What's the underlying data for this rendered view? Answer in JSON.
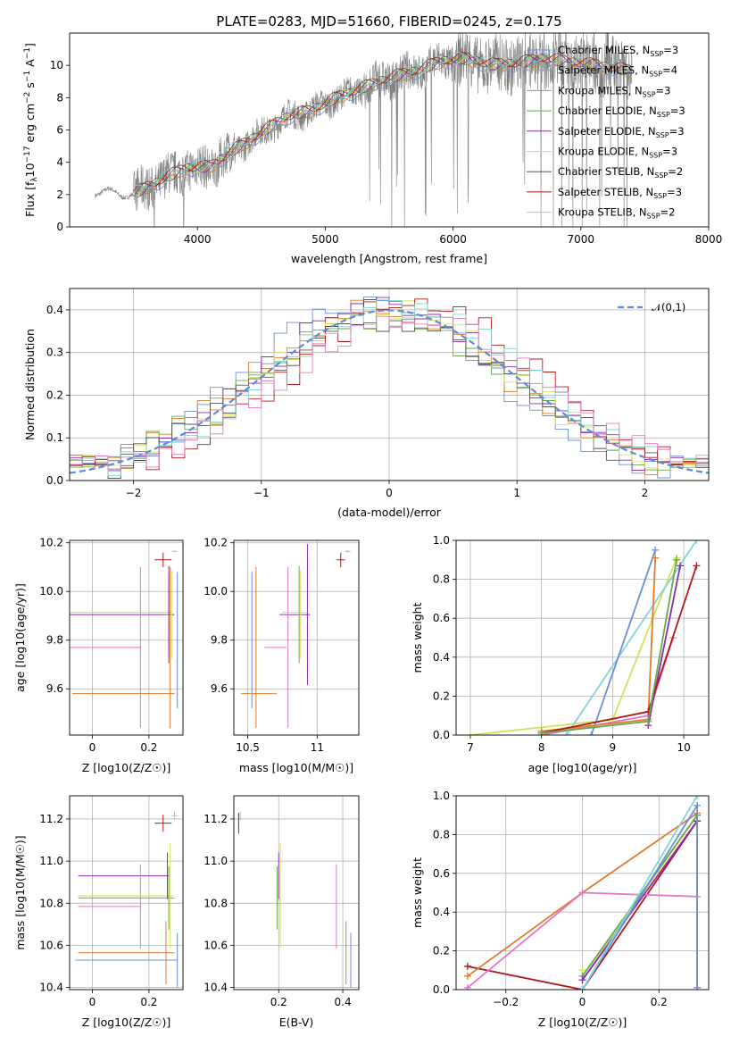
{
  "title": "PLATE=0283, MJD=51660, FIBERID=0245, z=0.175",
  "colors": {
    "chabrier_miles": "#6a8fd8",
    "salpeter_miles": "#9a9a9a",
    "kroupa_miles": "#e07b2e",
    "chabrier_elodie": "#69a84f",
    "salpeter_elodie": "#8a2bb0",
    "kroupa_elodie": "#d4e157",
    "chabrier_stelib": "#555555",
    "salpeter_stelib": "#b01818",
    "kroupa_stelib": "#7fd6d6",
    "pink": "#e377c2",
    "gauss": "#5b8bd9"
  },
  "chart_data": [
    {
      "id": "spectrum",
      "type": "line",
      "xlabel": "wavelength [Angstrom, rest frame]",
      "ylabel": "Flux [f_λ10^-17 erg cm^-2 s^-1 A^-1]",
      "xlim": [
        3000,
        8000
      ],
      "ylim": [
        0,
        12
      ],
      "xticks": [
        4000,
        5000,
        6000,
        7000,
        8000
      ],
      "yticks": [
        0,
        2,
        4,
        6,
        8,
        10
      ],
      "legend_position": "upper right",
      "legend": [
        {
          "text": "Chabrier MILES, N",
          "sub": "SSP",
          "n": "=3",
          "color": "chabrier_miles"
        },
        {
          "text": "Salpeter MILES, N",
          "sub": "SSP",
          "n": "=4",
          "color": "salpeter_miles"
        },
        {
          "text": "Kroupa MILES, N",
          "sub": "SSP",
          "n": "=3",
          "color": "kroupa_miles"
        },
        {
          "text": "Chabrier ELODIE, N",
          "sub": "SSP",
          "n": "=3",
          "color": "chabrier_elodie"
        },
        {
          "text": "Salpeter ELODIE, N",
          "sub": "SSP",
          "n": "=3",
          "color": "salpeter_elodie"
        },
        {
          "text": "Kroupa ELODIE, N",
          "sub": "SSP",
          "n": "=3",
          "color": "kroupa_elodie"
        },
        {
          "text": "Chabrier STELIB, N",
          "sub": "SSP",
          "n": "=2",
          "color": "chabrier_stelib"
        },
        {
          "text": "Salpeter STELIB, N",
          "sub": "SSP",
          "n": "=3",
          "color": "salpeter_stelib"
        },
        {
          "text": "Kroupa STELIB, N",
          "sub": "SSP",
          "n": "=2",
          "color": "kroupa_stelib"
        }
      ],
      "continuum": {
        "x": [
          3200,
          3500,
          3700,
          3900,
          4100,
          4300,
          4500,
          4700,
          4900,
          5100,
          5300,
          5500,
          5700,
          5900,
          6100,
          6300,
          6500,
          6700,
          6900,
          7200,
          7400
        ],
        "y": [
          2.2,
          2.0,
          2.8,
          3.6,
          3.7,
          4.8,
          5.8,
          6.8,
          7.2,
          8.0,
          8.6,
          9.2,
          9.6,
          10.2,
          10.4,
          10.0,
          10.1,
          10.4,
          10.2,
          9.9,
          9.6
        ]
      }
    },
    {
      "id": "residuals",
      "type": "histogram",
      "xlabel": "(data-model)/error",
      "ylabel": "Normed distribution",
      "xlim": [
        -2.5,
        2.5
      ],
      "ylim": [
        0,
        0.45
      ],
      "xticks": [
        -2,
        -1,
        0,
        1,
        2
      ],
      "yticks": [
        0.0,
        0.1,
        0.2,
        0.3,
        0.4
      ],
      "legend": "𝒩(0,1)",
      "legend_position": "upper right",
      "bin_width": 0.1
    },
    {
      "id": "age_vs_Z",
      "type": "errorbar",
      "xlabel": "Z [log10(Z/Z☉)]",
      "ylabel": "age [log10(age/yr)]",
      "xlim": [
        -0.08,
        0.32
      ],
      "ylim": [
        9.41,
        10.21
      ],
      "xticks": [
        0.0,
        0.2
      ],
      "yticks": [
        9.6,
        9.8,
        10.0,
        10.2
      ],
      "points": [
        {
          "color": "salpeter_stelib",
          "x": 0.25,
          "y": 10.13,
          "xerr": 0.03,
          "yerr": 0.03
        },
        {
          "color": "kroupa_stelib",
          "x": 0.29,
          "y": 10.165,
          "xerr": 0.01,
          "yerr": 0.005
        },
        {
          "color": "kroupa_elodie",
          "x": 0.1,
          "y": 9.915,
          "xerr": 0.18,
          "yerr": 0.0
        },
        {
          "color": "salpeter_elodie",
          "x": 0.1,
          "y": 9.905,
          "xerr": 0.19,
          "yerr": 0.0
        },
        {
          "color": "chabrier_elodie",
          "x": 0.27,
          "y": 9.905,
          "xerr": 0.01,
          "yerr": 0.17
        },
        {
          "color": "kroupa_elodie",
          "x": 0.28,
          "y": 9.905,
          "xerr": 0.0,
          "yerr": 0.18
        },
        {
          "color": "salpeter_elodie",
          "x": 0.27,
          "y": 9.905,
          "xerr": 0.0,
          "yerr": 0.2
        },
        {
          "color": "chabrier_miles",
          "x": 0.3,
          "y": 9.8,
          "xerr": 0.0,
          "yerr": 0.28
        },
        {
          "color": "pink",
          "x": 0.04,
          "y": 9.77,
          "xerr": 0.13,
          "yerr": 0.0
        },
        {
          "color": "pink",
          "x": 0.17,
          "y": 9.77,
          "xerr": 0.0,
          "yerr": 0.33
        },
        {
          "color": "kroupa_miles",
          "x": 0.11,
          "y": 9.58,
          "xerr": 0.18,
          "yerr": 0.0
        },
        {
          "color": "kroupa_miles",
          "x": 0.275,
          "y": 9.77,
          "xerr": 0.0,
          "yerr": 0.33
        }
      ]
    },
    {
      "id": "age_vs_mass",
      "type": "errorbar",
      "xlabel": "mass [log10(M/M☉)]",
      "ylabel": "",
      "xlim": [
        10.4,
        11.3
      ],
      "ylim": [
        9.41,
        10.21
      ],
      "xticks": [
        10.5,
        11.0
      ],
      "yticks": [
        9.6,
        9.8,
        10.0,
        10.2
      ],
      "points": [
        {
          "color": "salpeter_stelib",
          "x": 11.17,
          "y": 10.13,
          "xerr": 0.03,
          "yerr": 0.03
        },
        {
          "color": "kroupa_stelib",
          "x": 11.22,
          "y": 10.165,
          "xerr": 0.02,
          "yerr": 0.005
        },
        {
          "color": "kroupa_elodie",
          "x": 10.84,
          "y": 9.915,
          "xerr": 0.09,
          "yerr": 0.0
        },
        {
          "color": "salpeter_elodie",
          "x": 10.84,
          "y": 9.905,
          "xerr": 0.11,
          "yerr": 0.0
        },
        {
          "color": "kroupa_elodie",
          "x": 10.88,
          "y": 9.905,
          "xerr": 0.0,
          "yerr": 0.18
        },
        {
          "color": "salpeter_elodie",
          "x": 10.93,
          "y": 9.905,
          "xerr": 0.0,
          "yerr": 0.29
        },
        {
          "color": "chabrier_elodie",
          "x": 10.87,
          "y": 9.905,
          "xerr": 0.0,
          "yerr": 0.2
        },
        {
          "color": "chabrier_miles",
          "x": 10.53,
          "y": 9.8,
          "xerr": 0.0,
          "yerr": 0.28
        },
        {
          "color": "pink",
          "x": 10.7,
          "y": 9.77,
          "xerr": 0.08,
          "yerr": 0.0
        },
        {
          "color": "pink",
          "x": 10.79,
          "y": 9.77,
          "xerr": 0.0,
          "yerr": 0.33
        },
        {
          "color": "kroupa_miles",
          "x": 10.58,
          "y": 9.58,
          "xerr": 0.13,
          "yerr": 0.0
        },
        {
          "color": "kroupa_miles",
          "x": 10.56,
          "y": 9.77,
          "xerr": 0.0,
          "yerr": 0.33
        }
      ]
    },
    {
      "id": "mass_weight_vs_age",
      "type": "line",
      "xlabel": "age [log10(age/yr)]",
      "ylabel": "mass weight",
      "xlim": [
        6.8,
        10.35
      ],
      "ylim": [
        0.0,
        1.0
      ],
      "xticks": [
        7,
        8,
        9,
        10
      ],
      "yticks": [
        0.0,
        0.2,
        0.4,
        0.6,
        0.8,
        1.0
      ],
      "series": [
        {
          "color": "kroupa_elodie",
          "x": [
            7.0,
            9.0,
            9.9
          ],
          "y": [
            0.0,
            0.08,
            0.91
          ]
        },
        {
          "color": "kroupa_stelib",
          "x": [
            8.35,
            10.18
          ],
          "y": [
            0.0,
            1.0
          ]
        },
        {
          "color": "pink",
          "x": [
            8.0,
            9.5,
            9.85
          ],
          "y": [
            0.0,
            0.1,
            0.5
          ]
        },
        {
          "color": "chabrier_miles",
          "x": [
            8.7,
            9.6
          ],
          "y": [
            0.0,
            0.95
          ]
        },
        {
          "color": "kroupa_miles",
          "x": [
            8.0,
            9.5,
            9.6
          ],
          "y": [
            0.02,
            0.08,
            0.91
          ]
        },
        {
          "color": "salpeter_elodie",
          "x": [
            9.5,
            9.95
          ],
          "y": [
            0.05,
            0.87
          ]
        },
        {
          "color": "salpeter_stelib",
          "x": [
            8.0,
            9.5,
            10.18
          ],
          "y": [
            0.01,
            0.12,
            0.87
          ]
        },
        {
          "color": "chabrier_elodie",
          "x": [
            8.0,
            9.5,
            9.9
          ],
          "y": [
            0.01,
            0.07,
            0.9
          ]
        }
      ]
    },
    {
      "id": "mass_vs_Z",
      "type": "errorbar",
      "xlabel": "Z [log10(Z/Z☉)]",
      "ylabel": "mass [log10(M/M☉)]",
      "xlim": [
        -0.08,
        0.32
      ],
      "ylim": [
        10.39,
        11.31
      ],
      "xticks": [
        0.0,
        0.2
      ],
      "yticks": [
        10.4,
        10.6,
        10.8,
        11.0,
        11.2
      ],
      "points": [
        {
          "color": "salpeter_stelib",
          "x": 0.25,
          "y": 11.18,
          "xerr": 0.03,
          "yerr": 0.04
        },
        {
          "color": "kroupa_stelib",
          "x": 0.29,
          "y": 11.215,
          "xerr": 0.01,
          "yerr": 0.02
        },
        {
          "color": "salpeter_elodie",
          "x": 0.11,
          "y": 10.93,
          "xerr": 0.16,
          "yerr": 0.0
        },
        {
          "color": "kroupa_elodie",
          "x": 0.12,
          "y": 10.835,
          "xerr": 0.17,
          "yerr": 0.0
        },
        {
          "color": "chabrier_elodie",
          "x": 0.12,
          "y": 10.825,
          "xerr": 0.17,
          "yerr": 0.0
        },
        {
          "color": "pink",
          "x": 0.06,
          "y": 10.785,
          "xerr": 0.11,
          "yerr": 0.0
        },
        {
          "color": "pink",
          "x": 0.17,
          "y": 10.785,
          "xerr": 0.0,
          "yerr": 0.2
        },
        {
          "color": "salpeter_elodie",
          "x": 0.265,
          "y": 10.93,
          "xerr": 0.0,
          "yerr": 0.11
        },
        {
          "color": "kroupa_elodie",
          "x": 0.275,
          "y": 10.835,
          "xerr": 0.0,
          "yerr": 0.25
        },
        {
          "color": "chabrier_elodie",
          "x": 0.27,
          "y": 10.825,
          "xerr": 0.0,
          "yerr": 0.15
        },
        {
          "color": "kroupa_miles",
          "x": 0.12,
          "y": 10.565,
          "xerr": 0.17,
          "yerr": 0.0
        },
        {
          "color": "kroupa_miles",
          "x": 0.26,
          "y": 10.565,
          "xerr": 0.0,
          "yerr": 0.15
        },
        {
          "color": "chabrier_miles",
          "x": 0.12,
          "y": 10.53,
          "xerr": 0.18,
          "yerr": 0.0
        },
        {
          "color": "chabrier_miles",
          "x": 0.3,
          "y": 10.53,
          "xerr": 0.0,
          "yerr": 0.13
        }
      ]
    },
    {
      "id": "mass_vs_EBV",
      "type": "errorbar",
      "xlabel": "E(B-V)",
      "ylabel": "",
      "xlim": [
        0.06,
        0.45
      ],
      "ylim": [
        10.39,
        11.31
      ],
      "xticks": [
        0.2,
        0.4
      ],
      "yticks": [
        10.4,
        10.6,
        10.8,
        11.0,
        11.2
      ],
      "points": [
        {
          "color": "salpeter_stelib",
          "x": 0.075,
          "y": 11.18,
          "xerr": 0.0,
          "yerr": 0.05
        },
        {
          "color": "kroupa_stelib",
          "x": 0.08,
          "y": 11.215,
          "xerr": 0.0,
          "yerr": 0.02
        },
        {
          "color": "salpeter_elodie",
          "x": 0.2,
          "y": 10.93,
          "xerr": 0.0,
          "yerr": 0.11
        },
        {
          "color": "kroupa_elodie",
          "x": 0.205,
          "y": 10.835,
          "xerr": 0.0,
          "yerr": 0.25
        },
        {
          "color": "chabrier_elodie",
          "x": 0.195,
          "y": 10.825,
          "xerr": 0.0,
          "yerr": 0.15
        },
        {
          "color": "pink",
          "x": 0.38,
          "y": 10.785,
          "xerr": 0.0,
          "yerr": 0.2
        },
        {
          "color": "kroupa_miles",
          "x": 0.41,
          "y": 10.565,
          "xerr": 0.0,
          "yerr": 0.15
        },
        {
          "color": "chabrier_miles",
          "x": 0.425,
          "y": 10.53,
          "xerr": 0.0,
          "yerr": 0.13
        }
      ]
    },
    {
      "id": "mass_weight_vs_Z",
      "type": "line",
      "xlabel": "Z [log10(Z/Z☉)]",
      "ylabel": "mass weight",
      "xlim": [
        -0.33,
        0.33
      ],
      "ylim": [
        0.0,
        1.0
      ],
      "xticks": [
        -0.2,
        0.0,
        0.2
      ],
      "yticks": [
        0.0,
        0.2,
        0.4,
        0.6,
        0.8,
        1.0
      ],
      "series": [
        {
          "color": "salpeter_stelib",
          "x": [
            -0.3,
            0.0,
            0.3,
            0.3
          ],
          "y": [
            0.12,
            0.0,
            0.87,
            0.01
          ]
        },
        {
          "color": "kroupa_miles",
          "x": [
            -0.3,
            0.0,
            0.3,
            0.3
          ],
          "y": [
            0.07,
            0.5,
            0.91,
            0.01
          ]
        },
        {
          "color": "pink",
          "x": [
            -0.3,
            0.0,
            0.3
          ],
          "y": [
            0.01,
            0.5,
            0.48
          ]
        },
        {
          "color": "kroupa_elodie",
          "x": [
            0.0,
            0.0,
            0.3,
            0.3
          ],
          "y": [
            0.1,
            0.05,
            0.9,
            0.01
          ]
        },
        {
          "color": "chabrier_elodie",
          "x": [
            0.0,
            0.3
          ],
          "y": [
            0.07,
            0.9
          ]
        },
        {
          "color": "salpeter_elodie",
          "x": [
            0.0,
            0.3
          ],
          "y": [
            0.05,
            0.87
          ]
        },
        {
          "color": "chabrier_miles",
          "x": [
            0.0,
            0.3,
            0.3
          ],
          "y": [
            0.0,
            0.95,
            0.01
          ]
        },
        {
          "color": "kroupa_stelib",
          "x": [
            0.0,
            0.3
          ],
          "y": [
            0.0,
            1.0
          ]
        }
      ]
    }
  ]
}
